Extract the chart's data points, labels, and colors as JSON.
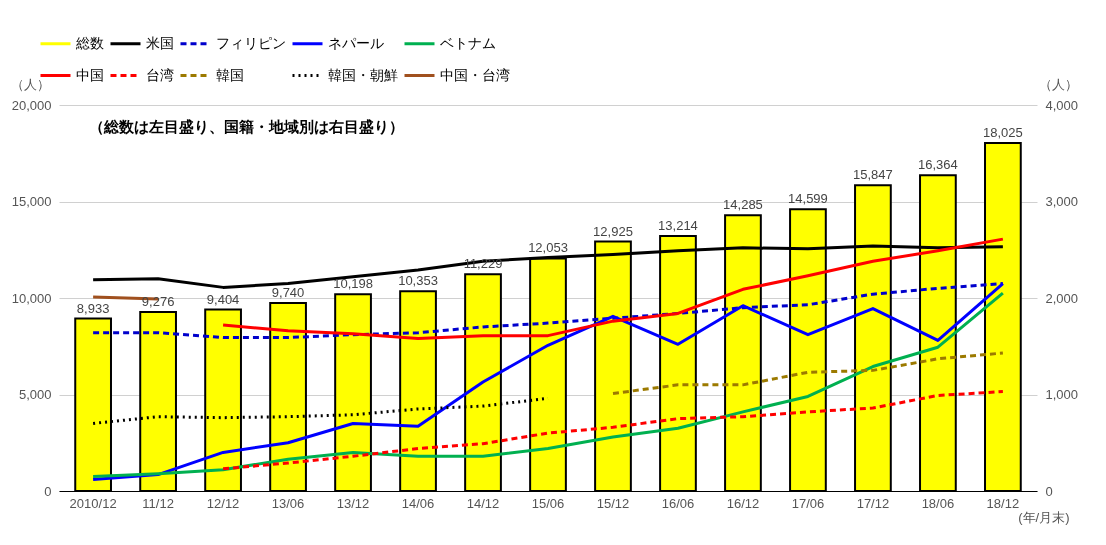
{
  "chart_data": {
    "type": "bar",
    "annotations": [
      "（総数は左目盛り、国籍・地域別は右目盛り）"
    ],
    "ylabel": "（人）",
    "y2label": "（人）",
    "xlabel": "(年/月末)",
    "categories": [
      "2010/12",
      "11/12",
      "12/12",
      "13/06",
      "13/12",
      "14/06",
      "14/12",
      "15/06",
      "15/12",
      "16/06",
      "16/12",
      "17/06",
      "17/12",
      "18/06",
      "18/12"
    ],
    "ylim": [
      0,
      20000
    ],
    "yticks": [
      0,
      {
        "value": 5000,
        "label": "5,000"
      },
      {
        "value": 10000,
        "label": "10,000"
      },
      {
        "value": 15000,
        "label": "15,000"
      },
      {
        "value": 20000,
        "label": "20,000"
      }
    ],
    "y2lim": [
      0,
      4000
    ],
    "y2ticks": [
      0,
      {
        "value": 1000,
        "label": "1,000"
      },
      {
        "value": 2000,
        "label": "2,000"
      },
      {
        "value": 3000,
        "label": "3,000"
      },
      {
        "value": 4000,
        "label": "4,000"
      }
    ],
    "grid": "y",
    "legend": "top",
    "series": [
      {
        "name": "総数",
        "color": "#ffff00",
        "values": [
          8933,
          9276,
          9404,
          9740,
          10198,
          10353,
          11229,
          12053,
          12925,
          13214,
          14285,
          14599,
          15847,
          16364,
          18025
        ],
        "value_labels": [
          "8,933",
          "9,276",
          "9,404",
          "9,740",
          "10,198",
          "10,353",
          "11,229",
          "12,053",
          "12,925",
          "13,214",
          "14,285",
          "14,599",
          "15,847",
          "16,364",
          "18,025"
        ]
      },
      {
        "name": "米国",
        "type": "line",
        "axis": "y2",
        "line_style": "solid",
        "color": "#000000",
        "values": [
          2190,
          2200,
          2110,
          2150,
          2220,
          2290,
          2380,
          2420,
          2450,
          2490,
          2520,
          2510,
          2540,
          2520,
          2530
        ]
      },
      {
        "name": "フィリピン",
        "type": "line",
        "axis": "y2",
        "line_style": "dashed",
        "color": "#0000cc",
        "values": [
          1640,
          1640,
          1590,
          1590,
          1620,
          1640,
          1700,
          1740,
          1790,
          1840,
          1900,
          1930,
          2040,
          2100,
          2150
        ]
      },
      {
        "name": "ネパール",
        "type": "line",
        "axis": "y2",
        "line_style": "solid",
        "color": "#0000ff",
        "values": [
          120,
          170,
          400,
          500,
          700,
          670,
          1130,
          1510,
          1810,
          1520,
          1920,
          1620,
          1890,
          1560,
          2150
        ]
      },
      {
        "name": "ベトナム",
        "type": "line",
        "axis": "y2",
        "line_style": "solid",
        "color": "#00b050",
        "values": [
          150,
          180,
          220,
          330,
          400,
          360,
          360,
          440,
          560,
          650,
          820,
          980,
          1290,
          1490,
          2050
        ]
      },
      {
        "name": "中国",
        "type": "line",
        "axis": "y2",
        "line_style": "solid",
        "color": "#ff0000",
        "values": [
          null,
          null,
          1720,
          1660,
          1630,
          1580,
          1610,
          1610,
          1760,
          1840,
          2090,
          2230,
          2380,
          2490,
          2610
        ]
      },
      {
        "name": "台湾",
        "type": "line",
        "axis": "y2",
        "line_style": "dashed",
        "color": "#ff0000",
        "values": [
          null,
          null,
          230,
          290,
          360,
          440,
          490,
          600,
          660,
          750,
          770,
          820,
          860,
          990,
          1030
        ]
      },
      {
        "name": "韓国",
        "type": "line",
        "axis": "y2",
        "line_style": "dashed",
        "color": "#9c7a00",
        "values": [
          null,
          null,
          null,
          null,
          null,
          null,
          null,
          null,
          1010,
          1100,
          1100,
          1230,
          1250,
          1370,
          1430
        ]
      },
      {
        "name": "韓国・朝鮮",
        "type": "line",
        "axis": "y2",
        "line_style": "dotted",
        "color": "#000000",
        "values": [
          700,
          770,
          760,
          770,
          790,
          850,
          880,
          960,
          null,
          null,
          null,
          null,
          null,
          null,
          null
        ]
      },
      {
        "name": "中国・台湾",
        "type": "line",
        "axis": "y2",
        "line_style": "solid",
        "color": "#a0501e",
        "values": [
          2010,
          1990,
          null,
          null,
          null,
          null,
          null,
          null,
          null,
          null,
          null,
          null,
          null,
          null,
          null
        ]
      }
    ]
  }
}
